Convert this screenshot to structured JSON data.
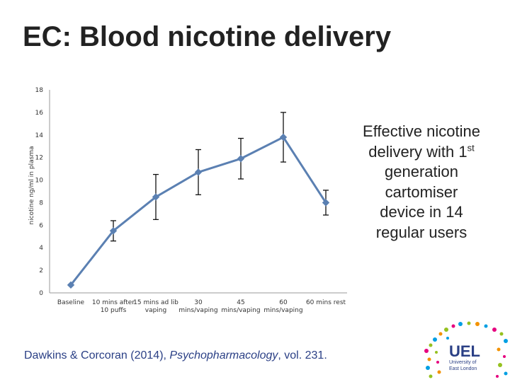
{
  "slide": {
    "title": "EC:  Blood nicotine delivery",
    "side_note": {
      "line1": "Effective nicotine",
      "line2_prefix": "delivery with 1",
      "line2_sup": "st",
      "line3": "generation",
      "line4": "cartomiser",
      "line5": "device in 14",
      "line6": "regular users"
    },
    "citation": {
      "prefix": "Dawkins & Corcoran (2014), ",
      "journal": "Psychopharmacology",
      "suffix": ", vol. 231."
    },
    "logo": {
      "brand": "UEL",
      "line1": "University of",
      "line2": "East London"
    }
  },
  "chart_data": {
    "type": "line",
    "title": "",
    "ylabel": "nicotine ng/ml in plasma",
    "xlabel": "",
    "ylim": [
      0,
      18
    ],
    "yticks": [
      0,
      2,
      4,
      6,
      8,
      10,
      12,
      14,
      16,
      18
    ],
    "grid": false,
    "legend": "none",
    "categories": [
      [
        "Baseline"
      ],
      [
        "10 mins after",
        "10 puffs"
      ],
      [
        "15 mins ad lib",
        "vaping"
      ],
      [
        "30",
        "mins/vaping"
      ],
      [
        "45",
        "mins/vaping"
      ],
      [
        "60",
        "mins/vaping"
      ],
      [
        "60 mins rest"
      ]
    ],
    "series": [
      {
        "values": [
          0.7,
          5.5,
          8.5,
          10.7,
          11.9,
          13.8,
          8.0
        ],
        "error": [
          0.0,
          0.9,
          2.0,
          2.0,
          1.8,
          2.2,
          1.1
        ],
        "color": "#5b80b2"
      }
    ]
  }
}
